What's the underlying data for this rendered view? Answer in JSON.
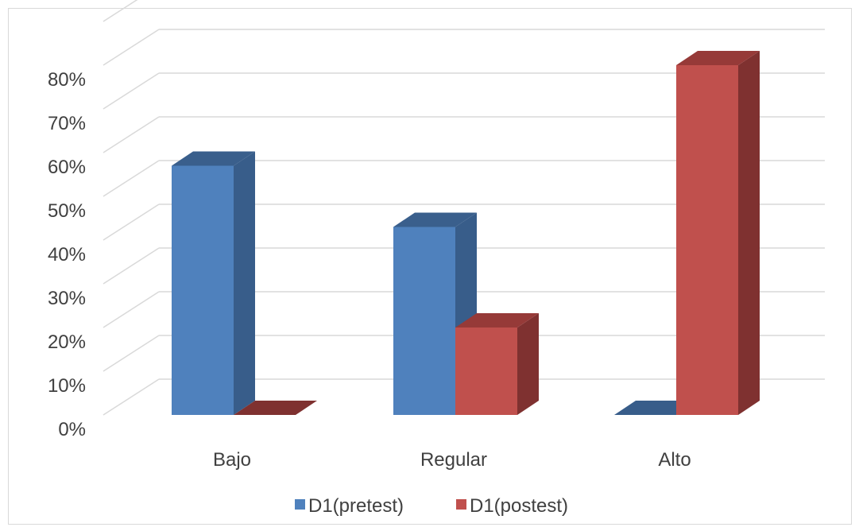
{
  "chart_data": {
    "type": "bar",
    "style": "3d-clustered-column",
    "categories": [
      "Bajo",
      "Regular",
      "Alto"
    ],
    "series": [
      {
        "name": "D1(pretest)",
        "values": [
          57,
          43,
          0
        ],
        "color": "#4f81bd",
        "side_color": "#385d8a",
        "top_color": "#3a5f8c"
      },
      {
        "name": "D1(postest)",
        "values": [
          0,
          20,
          80
        ],
        "color": "#c0504d",
        "side_color": "#7f3130",
        "top_color": "#963a38"
      }
    ],
    "y_ticks": [
      "0%",
      "10%",
      "20%",
      "30%",
      "40%",
      "50%",
      "60%",
      "70%",
      "80%"
    ],
    "ylim": [
      0,
      90
    ],
    "grid": true,
    "legend_position": "bottom",
    "gridline_color": "#d9d9d9",
    "text_color": "#404040"
  }
}
